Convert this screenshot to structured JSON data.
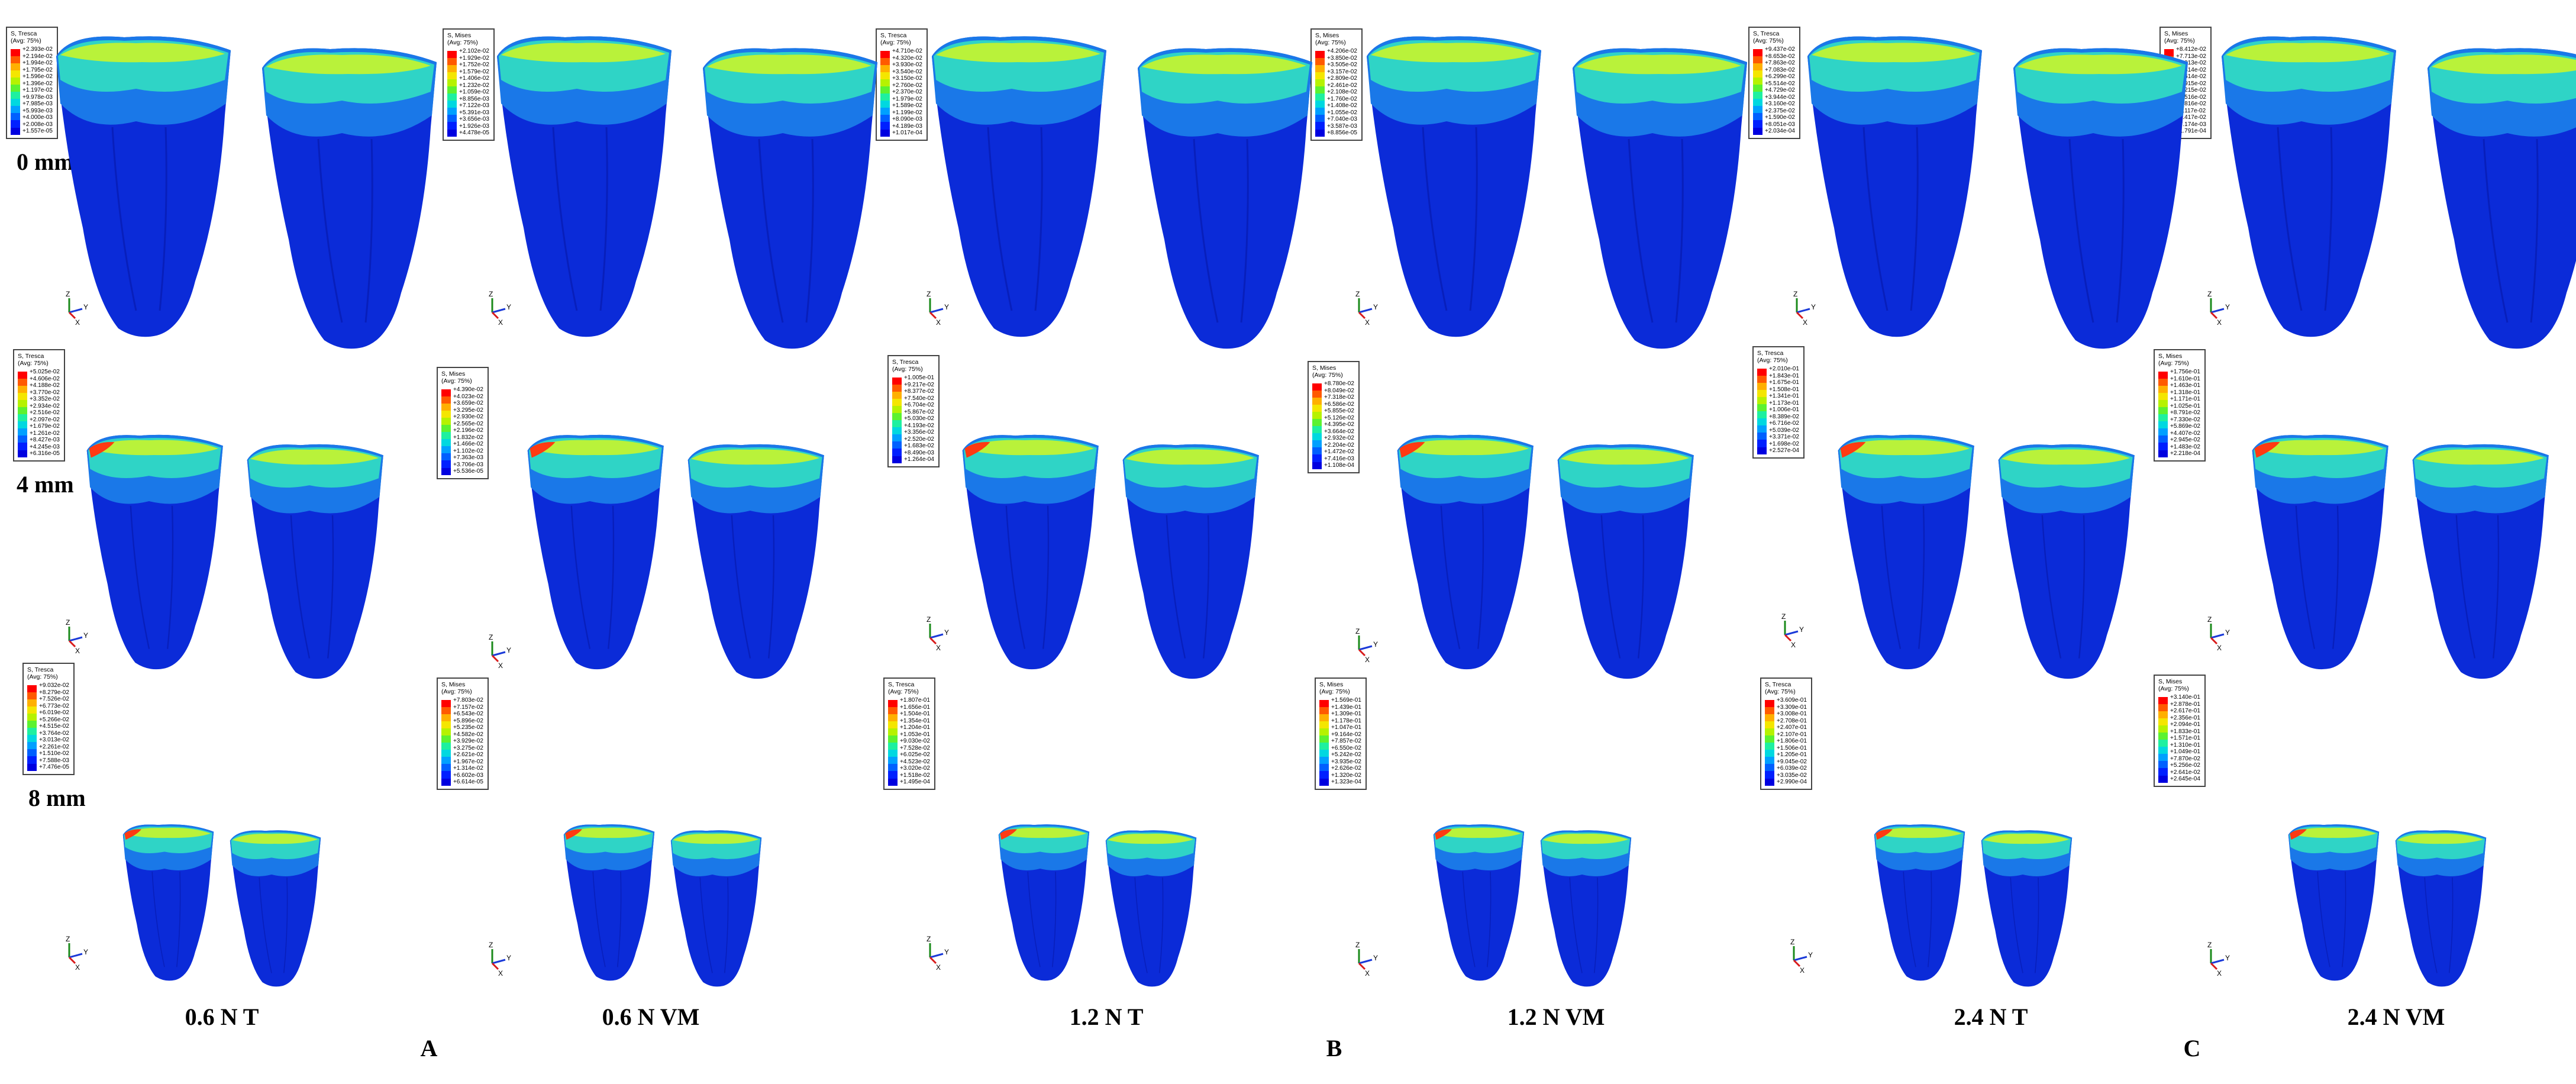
{
  "rows": [
    "0 mm",
    "4 mm",
    "8 mm"
  ],
  "columns": [
    "0.6 N T",
    "0.6 N VM",
    "1.2 N T",
    "1.2 N VM",
    "2.4 N T",
    "2.4 N VM"
  ],
  "groups": [
    "A",
    "B",
    "C"
  ],
  "axis_labels": {
    "z": "Z",
    "y": "Y",
    "x": "X"
  },
  "contour_colors": [
    "#ff0000",
    "#ff5a00",
    "#ffb000",
    "#f4e600",
    "#b6f200",
    "#5cf230",
    "#1ef0a0",
    "#00d8e0",
    "#00a0ff",
    "#0060ff",
    "#0020ff",
    "#0000e0"
  ],
  "model_colors": {
    "base": "#0b2bd8",
    "mid": "#1a78e8",
    "high": "#2fd4c6",
    "peak": "#b9f23a",
    "max": "#ff3a12"
  },
  "legends": [
    {
      "id": "r0c0",
      "title": "S, Tresca",
      "avg": "(Avg: 75%)",
      "values": [
        "+2.393e-02",
        "+2.194e-02",
        "+1.994e-02",
        "+1.795e-02",
        "+1.596e-02",
        "+1.396e-02",
        "+1.197e-02",
        "+9.978e-03",
        "+7.985e-03",
        "+5.993e-03",
        "+4.000e-03",
        "+2.008e-03",
        "+1.557e-05"
      ]
    },
    {
      "id": "r0c1",
      "title": "S, Mises",
      "avg": "(Avg: 75%)",
      "values": [
        "+2.102e-02",
        "+1.929e-02",
        "+1.752e-02",
        "+1.579e-02",
        "+1.406e-02",
        "+1.232e-02",
        "+1.059e-02",
        "+8.856e-03",
        "+7.122e-03",
        "+5.391e-03",
        "+3.656e-03",
        "+1.926e-03",
        "+4.478e-05"
      ]
    },
    {
      "id": "r0c2",
      "title": "S, Tresca",
      "avg": "(Avg: 75%)",
      "values": [
        "+4.710e-02",
        "+4.320e-02",
        "+3.930e-02",
        "+3.540e-02",
        "+3.150e-02",
        "+2.760e-02",
        "+2.370e-02",
        "+1.979e-02",
        "+1.589e-02",
        "+1.199e-02",
        "+8.090e-03",
        "+4.189e-03",
        "+1.017e-04"
      ]
    },
    {
      "id": "r0c3",
      "title": "S, Mises",
      "avg": "(Avg: 75%)",
      "values": [
        "+4.206e-02",
        "+3.850e-02",
        "+3.505e-02",
        "+3.157e-02",
        "+2.809e-02",
        "+2.461e-02",
        "+2.108e-02",
        "+1.760e-02",
        "+1.408e-02",
        "+1.055e-02",
        "+7.040e-03",
        "+3.587e-03",
        "+8.856e-05"
      ]
    },
    {
      "id": "r0c4",
      "title": "S, Tresca",
      "avg": "(Avg: 75%)",
      "values": [
        "+9.437e-02",
        "+8.653e-02",
        "+7.863e-02",
        "+7.083e-02",
        "+6.299e-02",
        "+5.514e-02",
        "+4.729e-02",
        "+3.944e-02",
        "+3.160e-02",
        "+2.375e-02",
        "+1.590e-02",
        "+8.051e-03",
        "+2.034e-04"
      ]
    },
    {
      "id": "r0c5",
      "title": "S, Mises",
      "avg": "(Avg: 75%)",
      "values": [
        "+8.412e-02",
        "+7.713e-02",
        "+7.013e-02",
        "+6.314e-02",
        "+5.614e-02",
        "+4.915e-02",
        "+4.215e-02",
        "+3.516e-02",
        "+2.816e-02",
        "+2.117e-02",
        "+1.417e-02",
        "+7.174e-03",
        "+1.791e-04"
      ]
    },
    {
      "id": "r1c0",
      "title": "S, Tresca",
      "avg": "(Avg: 75%)",
      "values": [
        "+5.025e-02",
        "+4.606e-02",
        "+4.188e-02",
        "+3.770e-02",
        "+3.352e-02",
        "+2.934e-02",
        "+2.516e-02",
        "+2.097e-02",
        "+1.679e-02",
        "+1.261e-02",
        "+8.427e-03",
        "+4.245e-03",
        "+6.316e-05"
      ]
    },
    {
      "id": "r1c1",
      "title": "S, Mises",
      "avg": "(Avg: 75%)",
      "values": [
        "+4.390e-02",
        "+4.023e-02",
        "+3.659e-02",
        "+3.295e-02",
        "+2.930e-02",
        "+2.565e-02",
        "+2.196e-02",
        "+1.832e-02",
        "+1.466e-02",
        "+1.102e-02",
        "+7.363e-03",
        "+3.706e-03",
        "+5.536e-05"
      ]
    },
    {
      "id": "r1c2",
      "title": "S, Tresca",
      "avg": "(Avg: 75%)",
      "values": [
        "+1.005e-01",
        "+9.217e-02",
        "+8.377e-02",
        "+7.540e-02",
        "+6.704e-02",
        "+5.867e-02",
        "+5.030e-02",
        "+4.193e-02",
        "+3.356e-02",
        "+2.520e-02",
        "+1.683e-02",
        "+8.490e-03",
        "+1.264e-04"
      ]
    },
    {
      "id": "r1c3",
      "title": "S, Mises",
      "avg": "(Avg: 75%)",
      "values": [
        "+8.780e-02",
        "+8.049e-02",
        "+7.318e-02",
        "+6.586e-02",
        "+5.855e-02",
        "+5.126e-02",
        "+4.395e-02",
        "+3.664e-02",
        "+2.932e-02",
        "+2.204e-02",
        "+1.472e-02",
        "+7.416e-03",
        "+1.108e-04"
      ]
    },
    {
      "id": "r1c4",
      "title": "S, Tresca",
      "avg": "(Avg: 75%)",
      "values": [
        "+2.010e-01",
        "+1.843e-01",
        "+1.675e-01",
        "+1.508e-01",
        "+1.341e-01",
        "+1.173e-01",
        "+1.006e-01",
        "+8.389e-02",
        "+6.716e-02",
        "+5.039e-02",
        "+3.371e-02",
        "+1.698e-02",
        "+2.527e-04"
      ]
    },
    {
      "id": "r1c5",
      "title": "S, Mises",
      "avg": "(Avg: 75%)",
      "values": [
        "+1.756e-01",
        "+1.610e-01",
        "+1.463e-01",
        "+1.318e-01",
        "+1.171e-01",
        "+1.025e-01",
        "+8.791e-02",
        "+7.330e-02",
        "+5.869e-02",
        "+4.407e-02",
        "+2.945e-02",
        "+1.483e-02",
        "+2.218e-04"
      ]
    },
    {
      "id": "r2c0",
      "title": "S, Tresca",
      "avg": "(Avg: 75%)",
      "values": [
        "+9.032e-02",
        "+8.279e-02",
        "+7.526e-02",
        "+6.773e-02",
        "+6.019e-02",
        "+5.266e-02",
        "+4.515e-02",
        "+3.764e-02",
        "+3.013e-02",
        "+2.261e-02",
        "+1.510e-02",
        "+7.588e-03",
        "+7.476e-05"
      ]
    },
    {
      "id": "r2c1",
      "title": "S, Mises",
      "avg": "(Avg: 75%)",
      "values": [
        "+7.803e-02",
        "+7.157e-02",
        "+6.543e-02",
        "+5.896e-02",
        "+5.235e-02",
        "+4.582e-02",
        "+3.929e-02",
        "+3.275e-02",
        "+2.621e-02",
        "+1.967e-02",
        "+1.314e-02",
        "+6.602e-03",
        "+6.614e-05"
      ]
    },
    {
      "id": "r2c2",
      "title": "S, Tresca",
      "avg": "(Avg: 75%)",
      "values": [
        "+1.807e-01",
        "+1.656e-01",
        "+1.504e-01",
        "+1.354e-01",
        "+1.204e-01",
        "+1.053e-01",
        "+9.030e-02",
        "+7.528e-02",
        "+6.025e-02",
        "+4.523e-02",
        "+3.020e-02",
        "+1.518e-02",
        "+1.495e-04"
      ]
    },
    {
      "id": "r2c3",
      "title": "S, Mises",
      "avg": "(Avg: 75%)",
      "values": [
        "+1.569e-01",
        "+1.439e-01",
        "+1.309e-01",
        "+1.178e-01",
        "+1.047e-01",
        "+9.164e-02",
        "+7.857e-02",
        "+6.550e-02",
        "+5.242e-02",
        "+3.935e-02",
        "+2.626e-02",
        "+1.320e-02",
        "+1.323e-04"
      ]
    },
    {
      "id": "r2c4",
      "title": "S, Tresca",
      "avg": "(Avg: 75%)",
      "values": [
        "+3.609e-01",
        "+3.309e-01",
        "+3.008e-01",
        "+2.708e-01",
        "+2.407e-01",
        "+2.107e-01",
        "+1.806e-01",
        "+1.506e-01",
        "+1.205e-01",
        "+9.045e-02",
        "+6.039e-02",
        "+3.035e-02",
        "+2.990e-04"
      ]
    },
    {
      "id": "r2c5",
      "title": "S, Mises",
      "avg": "(Avg: 75%)",
      "values": [
        "+3.140e-01",
        "+2.878e-01",
        "+2.617e-01",
        "+2.356e-01",
        "+2.094e-01",
        "+1.833e-01",
        "+1.571e-01",
        "+1.310e-01",
        "+1.049e-01",
        "+7.870e-02",
        "+5.256e-02",
        "+2.641e-02",
        "+2.645e-04"
      ]
    }
  ]
}
